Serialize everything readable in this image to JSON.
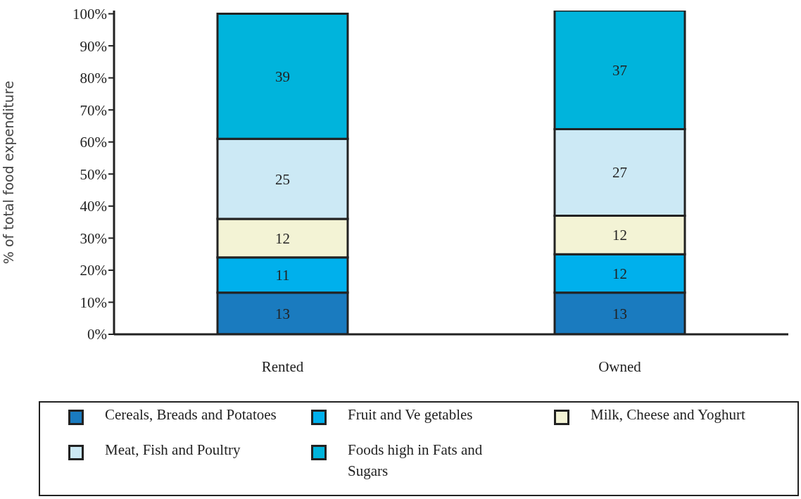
{
  "chart_data": {
    "type": "bar",
    "stacked": true,
    "ylabel": "% of total food expenditure",
    "categories": [
      "Rented",
      "Owned"
    ],
    "series": [
      {
        "name": "Cereals, Breads and Potatoes",
        "color": "#1a7bbf",
        "values": [
          13,
          13
        ]
      },
      {
        "name": "Fruit and Ve getables",
        "color": "#00b0ec",
        "values": [
          11,
          12
        ]
      },
      {
        "name": "Milk, Cheese and Yoghurt",
        "color": "#f3f3d5",
        "values": [
          12,
          12
        ]
      },
      {
        "name": "Meat, Fish and Poultry",
        "color": "#cce9f5",
        "values": [
          25,
          27
        ]
      },
      {
        "name": "Foods high in Fats and Sugars",
        "color": "#00b4dc",
        "values": [
          39,
          37
        ]
      }
    ],
    "ylim": [
      0,
      101
    ],
    "yticks": [
      {
        "value": 0,
        "label": "0%"
      },
      {
        "value": 10,
        "label": "10%"
      },
      {
        "value": 20,
        "label": "20%"
      },
      {
        "value": 30,
        "label": "30%"
      },
      {
        "value": 40,
        "label": "40%"
      },
      {
        "value": 50,
        "label": "50%"
      },
      {
        "value": 60,
        "label": "60%"
      },
      {
        "value": 70,
        "label": "70%"
      },
      {
        "value": 80,
        "label": "80%"
      },
      {
        "value": 90,
        "label": "90%"
      },
      {
        "value": 100,
        "label": "100%"
      }
    ],
    "data_labels": true,
    "grid": false,
    "legend": "bottom"
  }
}
